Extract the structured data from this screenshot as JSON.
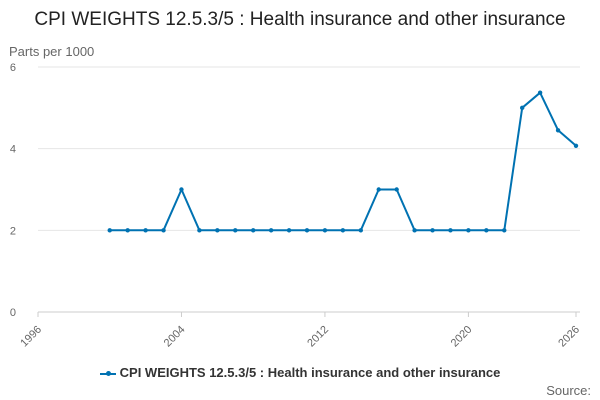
{
  "chart_data": {
    "type": "line",
    "title": "CPI WEIGHTS 12.5.3/5 : Health insurance and other insurance",
    "ylabel": "Parts per 1000",
    "xlabel": "",
    "x_ticks": [
      1996,
      2004,
      2012,
      2020,
      2026
    ],
    "y_ticks": [
      0,
      2,
      4,
      6
    ],
    "xlim": [
      1996,
      2026
    ],
    "ylim": [
      0,
      6
    ],
    "grid": true,
    "legend_position": "bottom",
    "colors": {
      "series": "#0072b2",
      "grid": "#e6e6e6",
      "axis": "#cccccc"
    },
    "x": [
      2000,
      2001,
      2002,
      2003,
      2004,
      2005,
      2006,
      2007,
      2008,
      2009,
      2010,
      2011,
      2012,
      2013,
      2014,
      2015,
      2016,
      2017,
      2018,
      2019,
      2020,
      2021,
      2022,
      2023,
      2024,
      2025,
      2026
    ],
    "series": [
      {
        "name": "CPI WEIGHTS 12.5.3/5 : Health insurance and other insurance",
        "values": [
          2,
          2,
          2,
          2,
          3,
          2,
          2,
          2,
          2,
          2,
          2,
          2,
          2,
          2,
          2,
          3,
          3,
          2,
          2,
          2,
          2,
          2,
          2,
          5,
          5.37,
          4.45,
          4.07
        ]
      }
    ]
  },
  "source_label": "Source:"
}
